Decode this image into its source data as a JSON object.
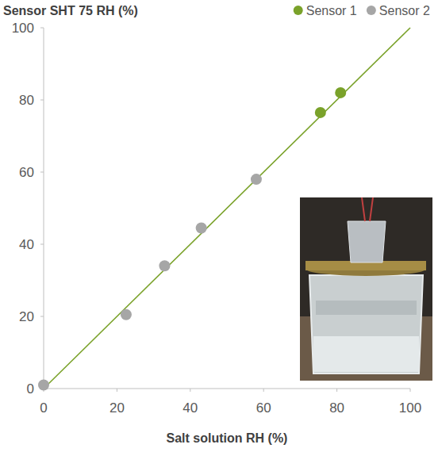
{
  "chart_data": {
    "type": "scatter",
    "y_label": "Sensor SHT 75 RH (%)",
    "x_label": "Salt solution RH (%)",
    "xlim": [
      0,
      100
    ],
    "ylim": [
      0,
      100
    ],
    "xticks": [
      0,
      20,
      40,
      60,
      80,
      100
    ],
    "yticks": [
      0,
      20,
      40,
      60,
      80,
      100
    ],
    "grid": false,
    "legend": "top-right",
    "series": [
      {
        "type": "line",
        "color": "#7aa22a",
        "line_style": "solid",
        "x": [
          0,
          100
        ],
        "values": [
          0,
          100
        ]
      },
      {
        "name": "Sensor 1",
        "type": "scatter",
        "color": "#7aa22a",
        "marker": "circle",
        "x": [
          75.5,
          81
        ],
        "values": [
          76.5,
          82
        ]
      },
      {
        "name": "Sensor 2",
        "type": "scatter",
        "color": "#a6a6a6",
        "marker": "circle",
        "x": [
          0,
          22.5,
          33,
          43,
          58
        ],
        "values": [
          1,
          20.5,
          34,
          44.5,
          58
        ]
      }
    ]
  }
}
